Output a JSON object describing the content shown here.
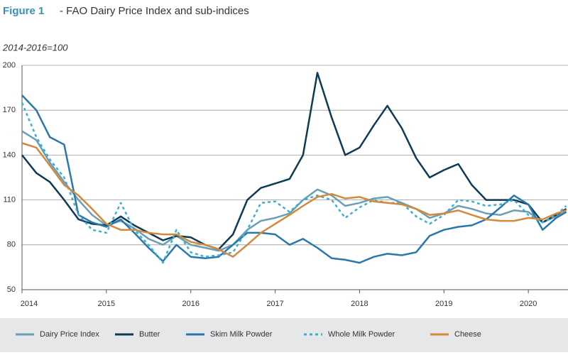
{
  "chart_data": {
    "type": "line",
    "title_label": "Figure 1",
    "title": "- FAO Dairy Price Index and sub-indices",
    "y_label": "2014-2016=100",
    "x": [
      2014,
      2014.17,
      2014.33,
      2014.5,
      2014.67,
      2014.83,
      2015,
      2015.17,
      2015.33,
      2015.5,
      2015.67,
      2015.83,
      2016,
      2016.17,
      2016.33,
      2016.5,
      2016.67,
      2016.83,
      2017,
      2017.17,
      2017.33,
      2017.5,
      2017.67,
      2017.83,
      2018,
      2018.17,
      2018.33,
      2018.5,
      2018.67,
      2018.83,
      2019,
      2019.17,
      2019.33,
      2019.5,
      2019.67,
      2019.83,
      2020,
      2020.17,
      2020.33,
      2020.45
    ],
    "series": [
      {
        "name": "Dairy Price Index",
        "color": "#6a9fb5",
        "style": "solid",
        "values": [
          156,
          150,
          135,
          122,
          110,
          100,
          93,
          96,
          91,
          84,
          80,
          86,
          80,
          78,
          76,
          80,
          90,
          96,
          98,
          101,
          110,
          117,
          113,
          106,
          108,
          111,
          112,
          108,
          104,
          98,
          101,
          106,
          104,
          101,
          100,
          103,
          102,
          95,
          99,
          102
        ]
      },
      {
        "name": "Butter",
        "color": "#0d3b55",
        "style": "solid",
        "values": [
          140,
          128,
          122,
          110,
          97,
          94,
          93,
          99,
          93,
          88,
          83,
          86,
          85,
          80,
          77,
          87,
          110,
          118,
          121,
          124,
          140,
          195,
          165,
          140,
          145,
          160,
          173,
          158,
          138,
          125,
          130,
          134,
          120,
          110,
          110,
          110,
          107,
          95,
          100,
          104
        ]
      },
      {
        "name": "Skim Milk Powder",
        "color": "#2a78ab",
        "style": "solid",
        "values": [
          180,
          170,
          152,
          147,
          100,
          95,
          92,
          97,
          88,
          78,
          69,
          80,
          72,
          71,
          72,
          80,
          88,
          88,
          87,
          80,
          84,
          78,
          71,
          70,
          68,
          72,
          74,
          73,
          75,
          86,
          90,
          92,
          93,
          97,
          105,
          113,
          107,
          90,
          98,
          102
        ]
      },
      {
        "name": "Whole Milk Powder",
        "color": "#3ab0d8",
        "style": "dashed",
        "values": [
          175,
          152,
          137,
          125,
          100,
          90,
          88,
          108,
          90,
          80,
          68,
          90,
          75,
          72,
          73,
          75,
          90,
          108,
          109,
          102,
          110,
          113,
          110,
          98,
          105,
          110,
          108,
          108,
          99,
          94,
          100,
          110,
          109,
          106,
          107,
          110,
          100,
          95,
          100,
          106
        ]
      },
      {
        "name": "Cheese",
        "color": "#d4883c",
        "style": "solid",
        "values": [
          148,
          145,
          133,
          120,
          113,
          104,
          94,
          90,
          90,
          88,
          87,
          87,
          82,
          80,
          77,
          72,
          80,
          88,
          94,
          100,
          106,
          112,
          114,
          111,
          112,
          109,
          108,
          107,
          104,
          100,
          101,
          103,
          100,
          97,
          96,
          96,
          98,
          97,
          101,
          103
        ]
      }
    ],
    "xlim": [
      2014,
      2020.47
    ],
    "xticks": [
      2014,
      2015,
      2016,
      2017,
      2018,
      2019,
      2020
    ],
    "ylim": [
      50,
      200
    ],
    "yticks": [
      50,
      80,
      110,
      140,
      170,
      200
    ],
    "grid": true,
    "legend": "bottom"
  }
}
